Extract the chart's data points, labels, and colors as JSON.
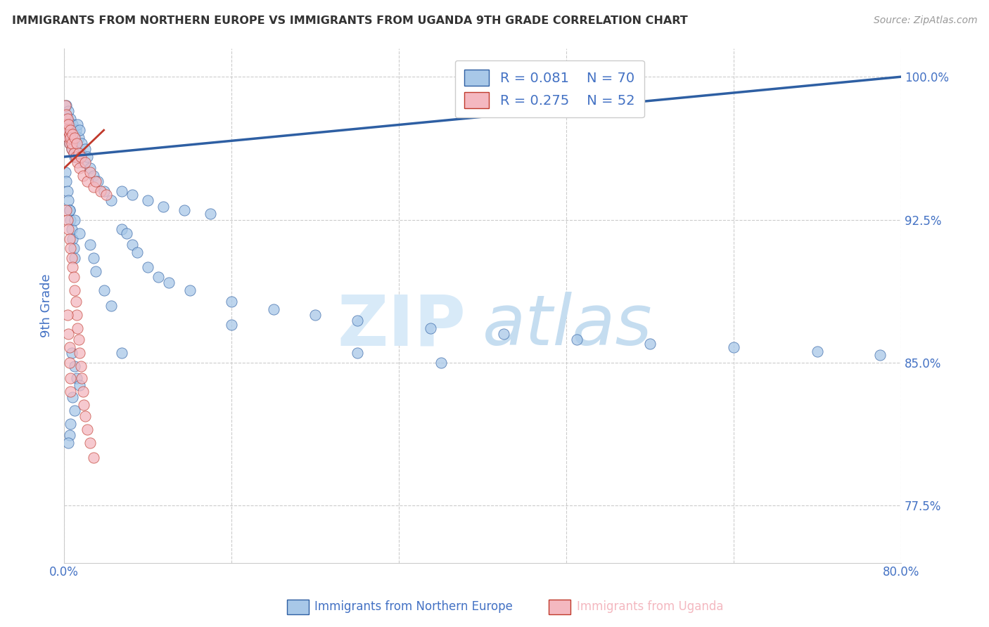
{
  "title": "IMMIGRANTS FROM NORTHERN EUROPE VS IMMIGRANTS FROM UGANDA 9TH GRADE CORRELATION CHART",
  "source": "Source: ZipAtlas.com",
  "xlabel_blue": "Immigrants from Northern Europe",
  "xlabel_pink": "Immigrants from Uganda",
  "ylabel": "9th Grade",
  "xlim": [
    0.0,
    0.8
  ],
  "ylim": [
    0.745,
    1.015
  ],
  "yticks": [
    0.775,
    0.85,
    0.925,
    1.0
  ],
  "ytick_labels": [
    "77.5%",
    "85.0%",
    "92.5%",
    "100.0%"
  ],
  "legend_blue": {
    "R": "0.081",
    "N": "70"
  },
  "legend_pink": {
    "R": "0.275",
    "N": "52"
  },
  "blue_color": "#a8c8e8",
  "pink_color": "#f4b8c0",
  "trend_blue_color": "#2e5fa3",
  "trend_pink_color": "#c0392b",
  "watermark_zip_color": "#cde0f0",
  "watermark_atlas_color": "#b8d4ea",
  "title_color": "#333333",
  "axis_label_color": "#4472c4",
  "tick_label_color": "#4472c4",
  "grid_color": "#cccccc",
  "blue_scatter_x": [
    0.001,
    0.002,
    0.002,
    0.003,
    0.003,
    0.004,
    0.004,
    0.005,
    0.005,
    0.006,
    0.006,
    0.007,
    0.007,
    0.008,
    0.008,
    0.009,
    0.009,
    0.01,
    0.01,
    0.011,
    0.012,
    0.013,
    0.014,
    0.015,
    0.016,
    0.017,
    0.018,
    0.02,
    0.022,
    0.025,
    0.028,
    0.032,
    0.038,
    0.045,
    0.055,
    0.065,
    0.08,
    0.095,
    0.115,
    0.14,
    0.055,
    0.06,
    0.065,
    0.07,
    0.08,
    0.09,
    0.1,
    0.12,
    0.16,
    0.2,
    0.24,
    0.28,
    0.35,
    0.42,
    0.49,
    0.56,
    0.64,
    0.72,
    0.78,
    0.001,
    0.002,
    0.003,
    0.004,
    0.005,
    0.006,
    0.007,
    0.008,
    0.009,
    0.01
  ],
  "blue_scatter_y": [
    0.98,
    0.975,
    0.985,
    0.972,
    0.978,
    0.968,
    0.982,
    0.975,
    0.965,
    0.97,
    0.978,
    0.962,
    0.972,
    0.968,
    0.975,
    0.96,
    0.965,
    0.97,
    0.958,
    0.972,
    0.965,
    0.975,
    0.968,
    0.972,
    0.96,
    0.965,
    0.955,
    0.962,
    0.958,
    0.952,
    0.948,
    0.945,
    0.94,
    0.935,
    0.94,
    0.938,
    0.935,
    0.932,
    0.93,
    0.928,
    0.92,
    0.918,
    0.912,
    0.908,
    0.9,
    0.895,
    0.892,
    0.888,
    0.882,
    0.878,
    0.875,
    0.872,
    0.868,
    0.865,
    0.862,
    0.86,
    0.858,
    0.856,
    0.854,
    0.95,
    0.945,
    0.94,
    0.935,
    0.93,
    0.925,
    0.92,
    0.915,
    0.91,
    0.905
  ],
  "blue_outlier_x": [
    0.005,
    0.01,
    0.015,
    0.025,
    0.028,
    0.03,
    0.038,
    0.045,
    0.055,
    0.16,
    0.28,
    0.36
  ],
  "blue_outlier_y": [
    0.93,
    0.925,
    0.918,
    0.912,
    0.905,
    0.898,
    0.888,
    0.88,
    0.855,
    0.87,
    0.855,
    0.85
  ],
  "blue_low_x": [
    0.007,
    0.01,
    0.012,
    0.015,
    0.008,
    0.01,
    0.006,
    0.005,
    0.004
  ],
  "blue_low_y": [
    0.855,
    0.848,
    0.842,
    0.838,
    0.832,
    0.825,
    0.818,
    0.812,
    0.808
  ],
  "pink_scatter_x": [
    0.001,
    0.002,
    0.002,
    0.003,
    0.003,
    0.004,
    0.004,
    0.005,
    0.005,
    0.006,
    0.006,
    0.007,
    0.007,
    0.008,
    0.009,
    0.01,
    0.011,
    0.012,
    0.013,
    0.014,
    0.015,
    0.016,
    0.018,
    0.02,
    0.022,
    0.025,
    0.028,
    0.03,
    0.035,
    0.04,
    0.002,
    0.003,
    0.004,
    0.005,
    0.006,
    0.007,
    0.008,
    0.009,
    0.01,
    0.011,
    0.012,
    0.013,
    0.014,
    0.015,
    0.016,
    0.017,
    0.018,
    0.019,
    0.02,
    0.022,
    0.025,
    0.028
  ],
  "pink_scatter_y": [
    0.985,
    0.98,
    0.975,
    0.978,
    0.972,
    0.968,
    0.975,
    0.97,
    0.965,
    0.972,
    0.968,
    0.962,
    0.965,
    0.97,
    0.96,
    0.968,
    0.958,
    0.965,
    0.955,
    0.96,
    0.952,
    0.958,
    0.948,
    0.955,
    0.945,
    0.95,
    0.942,
    0.945,
    0.94,
    0.938,
    0.93,
    0.925,
    0.92,
    0.915,
    0.91,
    0.905,
    0.9,
    0.895,
    0.888,
    0.882,
    0.875,
    0.868,
    0.862,
    0.855,
    0.848,
    0.842,
    0.835,
    0.828,
    0.822,
    0.815,
    0.808,
    0.8
  ],
  "pink_low_x": [
    0.003,
    0.004,
    0.005,
    0.005,
    0.006,
    0.006
  ],
  "pink_low_y": [
    0.875,
    0.865,
    0.858,
    0.85,
    0.842,
    0.835
  ],
  "trend_blue_x0": 0.0,
  "trend_blue_x1": 0.8,
  "trend_blue_y0": 0.958,
  "trend_blue_y1": 1.0,
  "trend_pink_x0": 0.0,
  "trend_pink_x1": 0.038,
  "trend_pink_y0": 0.952,
  "trend_pink_y1": 0.972
}
